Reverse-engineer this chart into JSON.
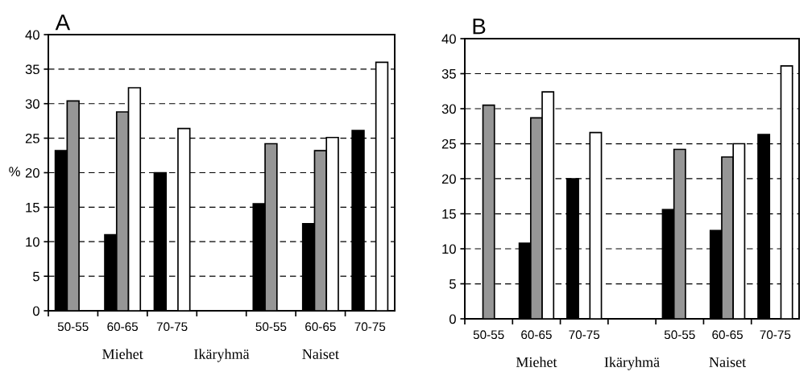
{
  "chart_data": [
    {
      "type": "bar",
      "title": "A",
      "ylabel": "%",
      "xlabel": "Ikäryhmä",
      "annotations": [
        "Miehet",
        "Naiset"
      ],
      "categories": [
        "50-55",
        "60-65",
        "70-75",
        null,
        "50-55",
        "60-65",
        "70-75"
      ],
      "series": [
        {
          "color": "#000000",
          "values": [
            23.2,
            11.0,
            20.0,
            null,
            15.5,
            12.6,
            26.1
          ]
        },
        {
          "color": "#969696",
          "values": [
            30.4,
            28.8,
            null,
            null,
            24.2,
            23.2,
            null
          ]
        },
        {
          "color": "#ffffff",
          "values": [
            null,
            32.3,
            26.4,
            null,
            null,
            25.1,
            36.0
          ]
        }
      ],
      "ylim": [
        0,
        40
      ],
      "yticks": [
        0,
        5,
        10,
        15,
        20,
        25,
        30,
        35,
        40
      ],
      "grid": "y",
      "legend": false
    },
    {
      "type": "bar",
      "title": "B",
      "xlabel": "Ikäryhmä",
      "annotations": [
        "Miehet",
        "Naiset"
      ],
      "categories": [
        "50-55",
        "60-65",
        "70-75",
        null,
        "50-55",
        "60-65",
        "70-75"
      ],
      "series": [
        {
          "color": "#000000",
          "values": [
            null,
            10.8,
            20.0,
            null,
            15.6,
            12.6,
            26.3
          ]
        },
        {
          "color": "#969696",
          "values": [
            30.5,
            28.7,
            null,
            null,
            24.2,
            23.1,
            null
          ]
        },
        {
          "color": "#ffffff",
          "values": [
            null,
            32.4,
            26.6,
            null,
            null,
            25.0,
            36.1
          ]
        }
      ],
      "ylim": [
        0,
        40
      ],
      "yticks": [
        0,
        5,
        10,
        15,
        20,
        25,
        30,
        35,
        40
      ],
      "grid": "y",
      "legend": false
    }
  ]
}
